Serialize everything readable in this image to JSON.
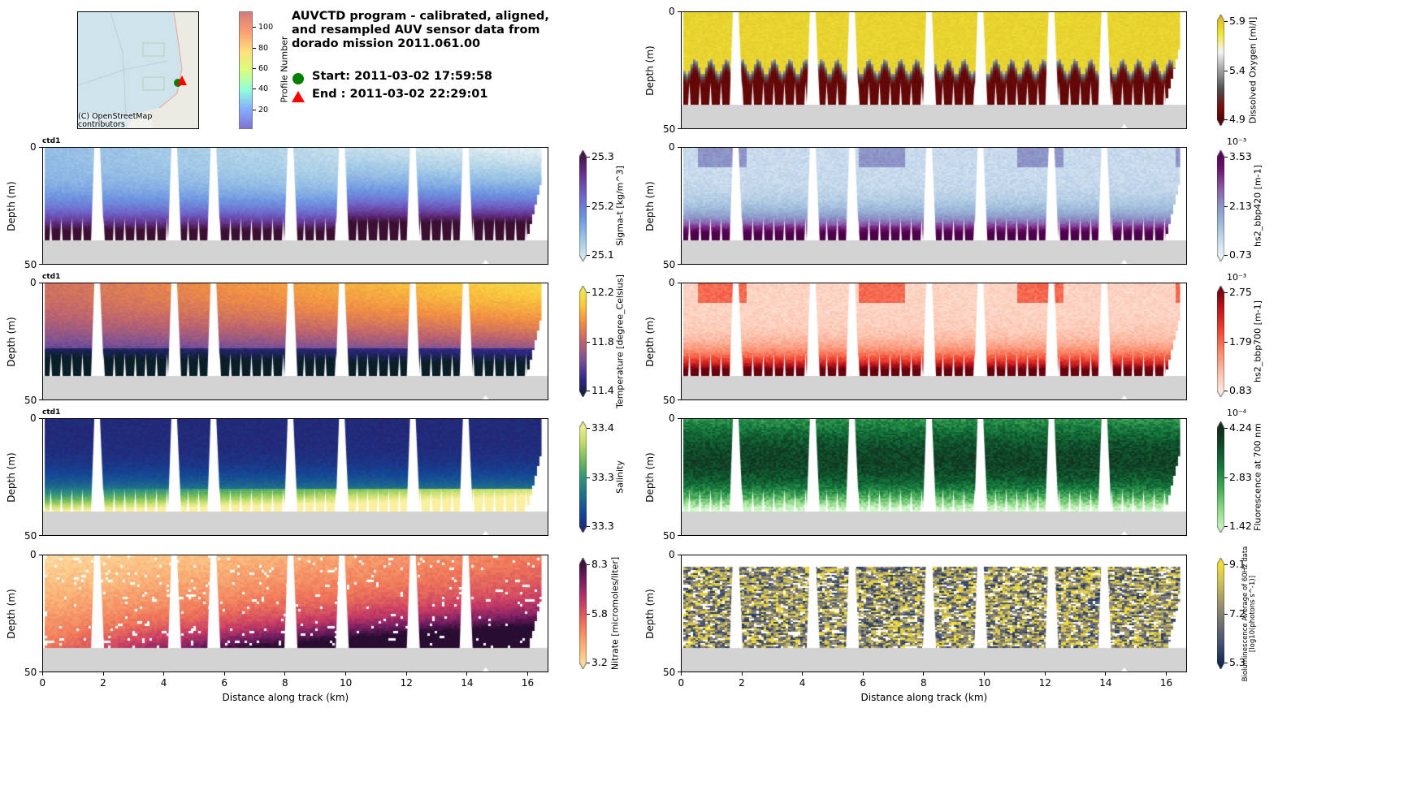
{
  "header": {
    "title_lines": [
      "AUVCTD program - calibrated, aligned,",
      "and resampled AUV sensor data from",
      "dorado mission 2011.061.00"
    ],
    "start_label": "Start: 2011-03-02 17:59:58",
    "end_label": "End  : 2011-03-02 22:29:01",
    "map_attribution_lines": [
      "(C) OpenStreetMap",
      "contributors"
    ],
    "profile_colorbar": {
      "label": "Profile Number",
      "ticks": [
        "20",
        "40",
        "60",
        "80",
        "100"
      ],
      "range": [
        1,
        115
      ]
    }
  },
  "chart_data": [
    {
      "type": "heatmap",
      "id": "sigma_t",
      "title": "ctd1",
      "xlabel": "",
      "ylabel": "Depth (m)",
      "xlim": [
        0,
        16.7
      ],
      "ylim": [
        50,
        0
      ],
      "yticks": [
        "0",
        "50"
      ],
      "colorbar": {
        "label": "Sigma-t [kg/m^3]",
        "ticks": [
          "25.3",
          "25.2",
          "25.1"
        ],
        "range": [
          25.1,
          25.3
        ],
        "colormap": "dense"
      }
    },
    {
      "type": "heatmap",
      "id": "temperature",
      "title": "ctd1",
      "xlabel": "",
      "ylabel": "Depth (m)",
      "xlim": [
        0,
        16.7
      ],
      "ylim": [
        50,
        0
      ],
      "yticks": [
        "0",
        "50"
      ],
      "colorbar": {
        "label": "Temperature [degree_Celsius]",
        "ticks": [
          "12.2",
          "11.8",
          "11.4"
        ],
        "range": [
          11.4,
          12.2
        ],
        "colormap": "thermal"
      }
    },
    {
      "type": "heatmap",
      "id": "salinity",
      "title": "ctd1",
      "xlabel": "",
      "ylabel": "Depth (m)",
      "xlim": [
        0,
        16.7
      ],
      "ylim": [
        50,
        0
      ],
      "yticks": [
        "0",
        "50"
      ],
      "colorbar": {
        "label": "Salinity",
        "ticks": [
          "33.4",
          "33.3",
          "33.3"
        ],
        "range": [
          33.25,
          33.4
        ],
        "colormap": "haline"
      }
    },
    {
      "type": "heatmap",
      "id": "nitrate",
      "title": "",
      "xlabel": "Distance along track (km)",
      "ylabel": "Depth (m)",
      "xlim": [
        0,
        16.7
      ],
      "ylim": [
        50,
        0
      ],
      "yticks": [
        "0",
        "50"
      ],
      "xticks": [
        "0",
        "2",
        "4",
        "6",
        "8",
        "10",
        "12",
        "14",
        "16"
      ],
      "colorbar": {
        "label": "Nitrate [micromoles/liter]",
        "ticks": [
          "8.3",
          "5.8",
          "3.2"
        ],
        "range": [
          3.2,
          8.3
        ],
        "colormap": "magma_r"
      }
    },
    {
      "type": "heatmap",
      "id": "oxygen",
      "title": "",
      "xlabel": "",
      "ylabel": "Depth (m)",
      "xlim": [
        0,
        16.7
      ],
      "ylim": [
        50,
        0
      ],
      "yticks": [
        "0",
        "50"
      ],
      "colorbar": {
        "label": "Dissolved Oxygen [ml/l]",
        "ticks": [
          "5.9",
          "5.4",
          "4.9"
        ],
        "range": [
          4.9,
          5.9
        ],
        "colormap": "oxy",
        "exponent": ""
      }
    },
    {
      "type": "heatmap",
      "id": "bbp420",
      "title": "",
      "xlabel": "",
      "ylabel": "Depth (m)",
      "xlim": [
        0,
        16.7
      ],
      "ylim": [
        50,
        0
      ],
      "yticks": [
        "0",
        "50"
      ],
      "colorbar": {
        "label": "hs2_bbp420 [m-1]",
        "ticks": [
          "3.53",
          "2.13",
          "0.73"
        ],
        "range": [
          0.73,
          3.53
        ],
        "colormap": "BuPu",
        "exponent": "10⁻³"
      }
    },
    {
      "type": "heatmap",
      "id": "bbp700",
      "title": "",
      "xlabel": "",
      "ylabel": "Depth (m)",
      "xlim": [
        0,
        16.7
      ],
      "ylim": [
        50,
        0
      ],
      "yticks": [
        "0",
        "50"
      ],
      "colorbar": {
        "label": "hs2_bbp700 [m-1]",
        "ticks": [
          "2.75",
          "1.79",
          "0.83"
        ],
        "range": [
          0.83,
          2.75
        ],
        "colormap": "Reds",
        "exponent": "10⁻³"
      }
    },
    {
      "type": "heatmap",
      "id": "fluorescence",
      "title": "",
      "xlabel": "",
      "ylabel": "Depth (m)",
      "xlim": [
        0,
        16.7
      ],
      "ylim": [
        50,
        0
      ],
      "yticks": [
        "0",
        "50"
      ],
      "colorbar": {
        "label": "Fluorescence at 700 nm",
        "ticks": [
          "4.24",
          "2.83",
          "1.42"
        ],
        "range": [
          1.42,
          4.24
        ],
        "colormap": "algae",
        "exponent": "10⁻⁴"
      }
    },
    {
      "type": "heatmap",
      "id": "bioluminescence",
      "title": "",
      "xlabel": "Distance along track (km)",
      "ylabel": "Depth (m)",
      "xlim": [
        0,
        16.7
      ],
      "ylim": [
        50,
        0
      ],
      "yticks": [
        "0",
        "50"
      ],
      "xticks": [
        "0",
        "2",
        "4",
        "6",
        "8",
        "10",
        "12",
        "14",
        "16"
      ],
      "colorbar": {
        "label": "Bioluminescence Average of 60Hz data",
        "label2": "[log10(photons s^-1)]",
        "ticks": [
          "9.1",
          "7.2",
          "5.3"
        ],
        "range": [
          5.3,
          9.1
        ],
        "colormap": "cividis"
      }
    }
  ]
}
